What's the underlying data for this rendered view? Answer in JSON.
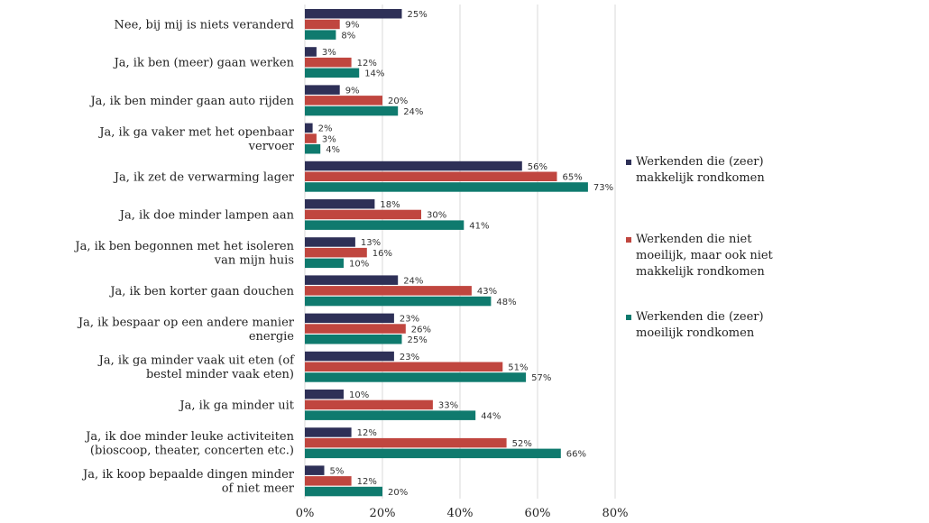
{
  "chart_data": {
    "type": "bar",
    "orientation": "horizontal",
    "categories": [
      [
        "Nee, bij mij is niets veranderd"
      ],
      [
        "Ja, ik ben (meer) gaan werken"
      ],
      [
        "Ja, ik ben minder gaan auto rijden"
      ],
      [
        "Ja, ik ga vaker met het openbaar",
        "vervoer"
      ],
      [
        "Ja, ik zet de verwarming lager"
      ],
      [
        "Ja, ik doe minder lampen aan"
      ],
      [
        "Ja, ik ben begonnen met het isoleren",
        "van mijn huis"
      ],
      [
        "Ja, ik ben korter gaan douchen"
      ],
      [
        "Ja, ik bespaar op een andere manier",
        "energie"
      ],
      [
        "Ja, ik ga minder vaak uit eten (of",
        "bestel minder vaak eten)"
      ],
      [
        "Ja, ik ga minder uit"
      ],
      [
        "Ja, ik doe minder leuke activiteiten",
        "(bioscoop, theater, concerten etc.)"
      ],
      [
        "Ja, ik koop bepaalde dingen minder",
        "of niet meer"
      ]
    ],
    "series": [
      {
        "name": [
          "Werkenden die (zeer)",
          "makkelijk rondkomen"
        ],
        "color": "#2e3057",
        "values": [
          25,
          3,
          9,
          2,
          56,
          18,
          13,
          24,
          23,
          23,
          10,
          12,
          5
        ]
      },
      {
        "name": [
          "Werkenden die niet",
          "moeilijk, maar ook niet",
          "makkelijk rondkomen"
        ],
        "color": "#c0463f",
        "values": [
          9,
          12,
          20,
          3,
          65,
          30,
          16,
          43,
          26,
          51,
          33,
          52,
          12
        ]
      },
      {
        "name": [
          "Werkenden die (zeer)",
          "moeilijk rondkomen"
        ],
        "color": "#0f7a6e",
        "values": [
          8,
          14,
          24,
          4,
          73,
          41,
          10,
          48,
          25,
          57,
          44,
          66,
          20
        ]
      }
    ],
    "xlim": [
      0,
      80
    ],
    "xticks": [
      0,
      20,
      40,
      60,
      80
    ],
    "value_suffix": "%",
    "grid": true,
    "legend": "right"
  }
}
